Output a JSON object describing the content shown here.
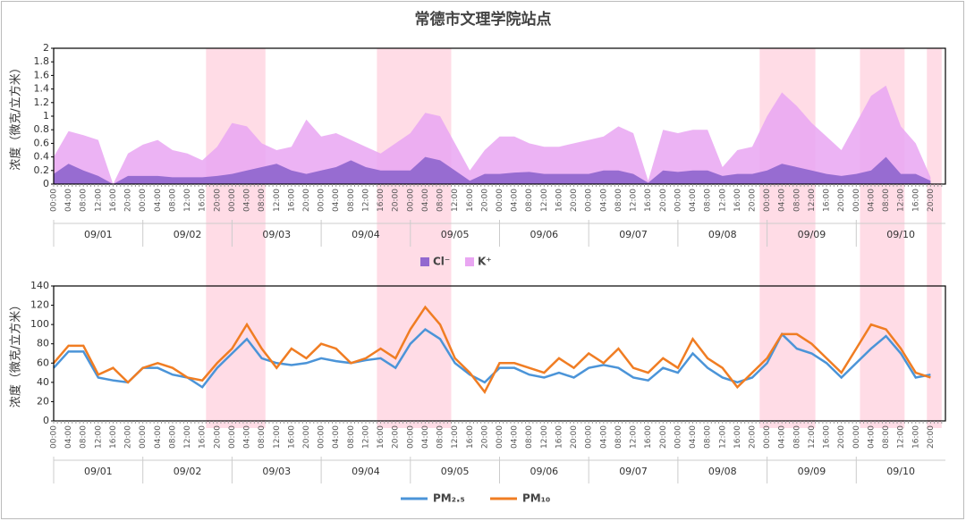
{
  "title": "常德市文理学院站点",
  "x_axis": {
    "days": [
      "09/01",
      "09/02",
      "09/03",
      "09/04",
      "09/05",
      "09/06",
      "09/07",
      "09/08",
      "09/09",
      "09/10"
    ],
    "hours": [
      "00:00",
      "04:00",
      "08:00",
      "12:00",
      "16:00",
      "20:00"
    ]
  },
  "highlights": [
    [
      41,
      57
    ],
    [
      87,
      107
    ],
    [
      190,
      205
    ],
    [
      217,
      229
    ],
    [
      235,
      239
    ]
  ],
  "highlight_color": "#ffd6e2",
  "chart_data": [
    {
      "type": "area",
      "ylabel": "浓度（微克/立方米）",
      "ylim": [
        0,
        2
      ],
      "yticks": [
        0,
        0.2,
        0.4,
        0.6,
        0.8,
        1,
        1.2,
        1.4,
        1.6,
        1.8,
        2
      ],
      "legend": "bottom",
      "series": [
        {
          "name": "Cl⁻",
          "color": "#9268cf",
          "values": [
            0.15,
            0.3,
            0.2,
            0.12,
            0,
            0.12,
            0.12,
            0.12,
            0.1,
            0.1,
            0.1,
            0.12,
            0.15,
            0.2,
            0.25,
            0.3,
            0.2,
            0.15,
            0.2,
            0.25,
            0.35,
            0.25,
            0.2,
            0.2,
            0.2,
            0.4,
            0.35,
            0.2,
            0.05,
            0.15,
            0.15,
            0.17,
            0.18,
            0.15,
            0.15,
            0.15,
            0.15,
            0.2,
            0.2,
            0.15,
            0.02,
            0.2,
            0.18,
            0.2,
            0.2,
            0.12,
            0.15,
            0.15,
            0.2,
            0.3,
            0.25,
            0.2,
            0.15,
            0.12,
            0.15,
            0.2,
            0.4,
            0.15,
            0.15,
            0.05
          ]
        },
        {
          "name": "K⁺",
          "color": "#e9a6f2",
          "values": [
            0.4,
            0.78,
            0.72,
            0.65,
            0,
            0.45,
            0.58,
            0.65,
            0.5,
            0.45,
            0.35,
            0.55,
            0.9,
            0.85,
            0.6,
            0.5,
            0.55,
            0.95,
            0.7,
            0.75,
            0.65,
            0.55,
            0.45,
            0.6,
            0.75,
            1.05,
            1,
            0.6,
            0.2,
            0.5,
            0.7,
            0.7,
            0.6,
            0.55,
            0.55,
            0.6,
            0.65,
            0.7,
            0.85,
            0.75,
            0.05,
            0.8,
            0.75,
            0.8,
            0.8,
            0.25,
            0.5,
            0.55,
            1,
            1.35,
            1.15,
            0.9,
            0.7,
            0.5,
            0.9,
            1.3,
            1.45,
            0.85,
            0.6,
            0.1
          ]
        }
      ]
    },
    {
      "type": "line",
      "ylabel": "浓度（微克/立方米）",
      "ylim": [
        0,
        140
      ],
      "yticks": [
        0,
        20,
        40,
        60,
        80,
        100,
        120,
        140
      ],
      "legend": "bottom",
      "series": [
        {
          "name": "PM₂.₅",
          "color": "#4b94d8",
          "values": [
            55,
            72,
            72,
            45,
            42,
            40,
            55,
            55,
            48,
            45,
            35,
            55,
            70,
            85,
            65,
            60,
            58,
            60,
            65,
            62,
            60,
            63,
            65,
            55,
            80,
            95,
            85,
            60,
            48,
            40,
            55,
            55,
            48,
            45,
            50,
            45,
            55,
            58,
            55,
            45,
            42,
            55,
            50,
            70,
            55,
            45,
            40,
            45,
            60,
            90,
            75,
            70,
            60,
            45,
            60,
            75,
            88,
            70,
            45,
            48
          ]
        },
        {
          "name": "PM₁₀",
          "color": "#f07d23",
          "values": [
            60,
            78,
            78,
            48,
            55,
            40,
            55,
            60,
            55,
            45,
            42,
            60,
            75,
            100,
            75,
            55,
            75,
            65,
            80,
            75,
            60,
            65,
            75,
            65,
            95,
            118,
            100,
            65,
            50,
            30,
            60,
            60,
            55,
            50,
            65,
            55,
            70,
            60,
            75,
            55,
            50,
            65,
            55,
            85,
            65,
            55,
            35,
            50,
            65,
            90,
            90,
            80,
            65,
            50,
            75,
            100,
            95,
            75,
            50,
            45
          ]
        }
      ]
    }
  ]
}
